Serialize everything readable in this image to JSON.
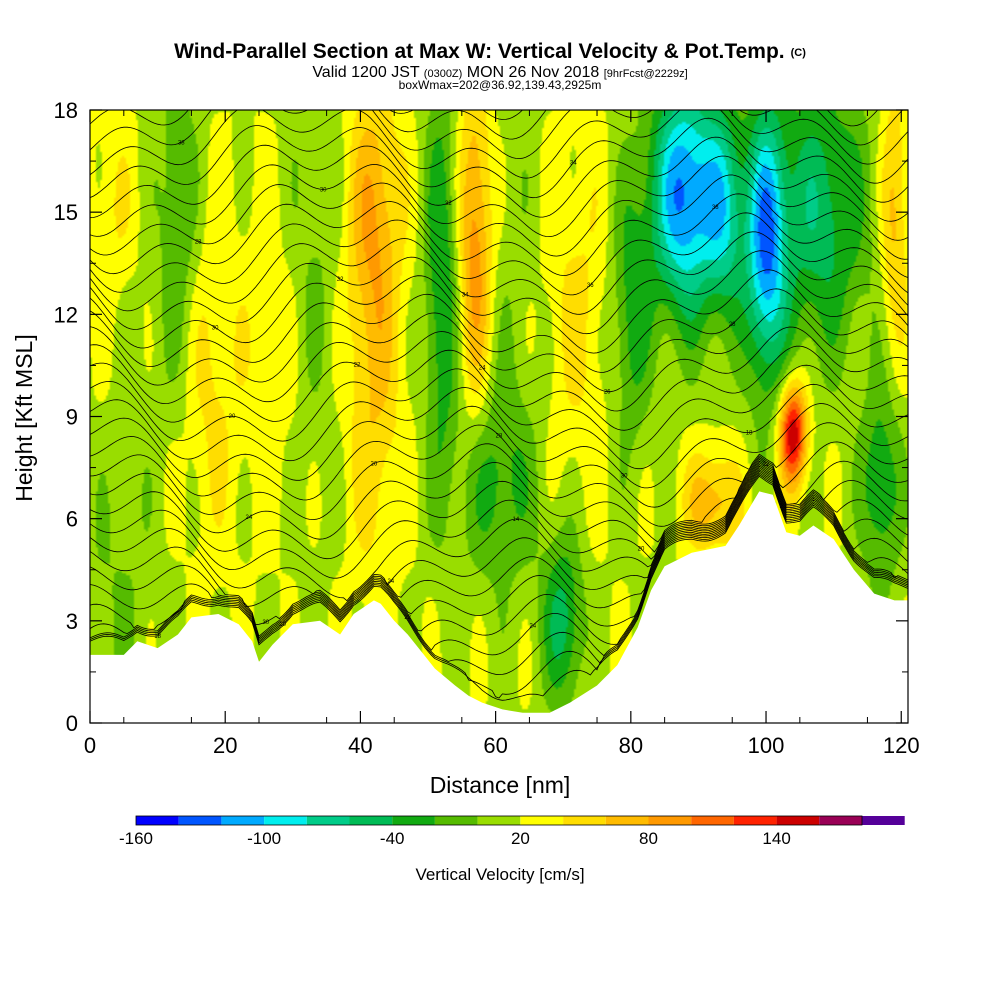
{
  "chart_data": {
    "type": "heatmap",
    "title": "Wind-Parallel Section at Max W: Vertical Velocity & Pot.Temp.",
    "title_mark": "(C)",
    "subtitle_parts": [
      "Valid 1200 JST ",
      "(0300Z)",
      " MON 26 Nov 2018 ",
      "[9hrFcst@2229z]"
    ],
    "subtitle2": "boxWmax=202@36.92,139.43,2925m",
    "xlabel": "Distance [nm]",
    "ylabel": "Height [Kft MSL]",
    "xlim": [
      0,
      121
    ],
    "ylim": [
      0,
      18
    ],
    "xticks": [
      "0",
      "20",
      "40",
      "60",
      "80",
      "100",
      "120"
    ],
    "xtick_values": [
      0,
      20,
      40,
      60,
      80,
      100,
      120
    ],
    "yticks": [
      "0",
      "3",
      "6",
      "9",
      "12",
      "15",
      "18"
    ],
    "ytick_values": [
      0,
      3,
      6,
      9,
      12,
      15,
      18
    ],
    "colorbar": {
      "label": "Vertical Velocity [cm/s]",
      "tick_labels": [
        "-160",
        "-100",
        "-40",
        "20",
        "80",
        "140"
      ],
      "tick_values": [
        -160,
        -100,
        -40,
        20,
        80,
        140
      ],
      "bins": [
        -160,
        -140,
        -120,
        -100,
        -80,
        -60,
        -40,
        -20,
        0,
        20,
        40,
        60,
        80,
        100,
        120,
        140,
        160,
        180
      ],
      "colors": [
        "#0000ff",
        "#0055ff",
        "#00aaff",
        "#00eeee",
        "#00cc88",
        "#00bb55",
        "#11aa11",
        "#55bb00",
        "#99dd00",
        "#ffff00",
        "#ffdd00",
        "#ffbb00",
        "#ff9900",
        "#ff6600",
        "#ff2200",
        "#cc0000",
        "#990055",
        "#550099"
      ]
    },
    "terrain": [
      [
        0,
        2.0
      ],
      [
        5,
        2.0
      ],
      [
        7,
        2.4
      ],
      [
        10,
        2.2
      ],
      [
        13,
        2.6
      ],
      [
        15,
        3.1
      ],
      [
        19,
        3.2
      ],
      [
        22,
        2.9
      ],
      [
        24,
        2.4
      ],
      [
        25,
        1.8
      ],
      [
        27,
        2.3
      ],
      [
        30,
        2.9
      ],
      [
        34,
        3.0
      ],
      [
        37,
        2.6
      ],
      [
        39,
        3.2
      ],
      [
        42,
        3.6
      ],
      [
        43,
        3.5
      ],
      [
        45,
        3.0
      ],
      [
        47,
        2.6
      ],
      [
        49,
        2.1
      ],
      [
        51,
        1.6
      ],
      [
        54,
        1.1
      ],
      [
        56,
        0.8
      ],
      [
        58,
        0.6
      ],
      [
        61,
        0.4
      ],
      [
        64,
        0.3
      ],
      [
        68,
        0.3
      ],
      [
        71,
        0.6
      ],
      [
        75,
        1.1
      ],
      [
        78,
        1.7
      ],
      [
        81,
        2.8
      ],
      [
        83,
        3.9
      ],
      [
        85,
        4.6
      ],
      [
        89,
        5.0
      ],
      [
        94,
        5.2
      ],
      [
        96,
        5.8
      ],
      [
        99,
        6.8
      ],
      [
        101,
        6.7
      ],
      [
        103,
        5.6
      ],
      [
        105,
        5.5
      ],
      [
        107,
        5.8
      ],
      [
        110,
        5.4
      ],
      [
        113,
        4.5
      ],
      [
        116,
        3.8
      ],
      [
        119,
        3.6
      ],
      [
        121,
        3.6
      ]
    ],
    "theta_labels": [
      "18",
      "20",
      "22",
      "24",
      "26",
      "28",
      "30",
      "24",
      "14",
      "20",
      "22",
      "24",
      "26",
      "28",
      "30",
      "18",
      "20",
      "22",
      "24",
      "26",
      "28",
      "30",
      "32",
      "34",
      "36",
      "38",
      "28",
      "30",
      "32",
      "34",
      "36",
      "38",
      "40",
      "42"
    ],
    "velocity_features": [
      {
        "x": 3,
        "z": 3.5,
        "w": 0,
        "xr": 6,
        "zr": 4
      },
      {
        "x": 7,
        "z": 11,
        "w": 10,
        "xr": 3,
        "zr": 7
      },
      {
        "x": 4,
        "z": 15,
        "w": 40,
        "xr": 4,
        "zr": 3
      },
      {
        "x": 13,
        "z": 15,
        "w": -20,
        "xr": 3,
        "zr": 5
      },
      {
        "x": 18,
        "z": 10,
        "w": 45,
        "xr": 4,
        "zr": 5
      },
      {
        "x": 27,
        "z": 11,
        "w": 35,
        "xr": 5,
        "zr": 5
      },
      {
        "x": 33,
        "z": 14,
        "w": -5,
        "xr": 4,
        "zr": 7
      },
      {
        "x": 42,
        "z": 15,
        "w": 75,
        "xr": 4,
        "zr": 4
      },
      {
        "x": 42,
        "z": 9,
        "w": 55,
        "xr": 4,
        "zr": 5
      },
      {
        "x": 52,
        "z": 13,
        "w": -40,
        "xr": 2.5,
        "zr": 6
      },
      {
        "x": 57,
        "z": 14,
        "w": 95,
        "xr": 2.5,
        "zr": 5
      },
      {
        "x": 60,
        "z": 7,
        "w": -25,
        "xr": 6,
        "zr": 3
      },
      {
        "x": 62,
        "z": 13,
        "w": 5,
        "xr": 5,
        "zr": 7
      },
      {
        "x": 72,
        "z": 12,
        "w": 45,
        "xr": 5,
        "zr": 5
      },
      {
        "x": 70,
        "z": 3,
        "w": -50,
        "xr": 3,
        "zr": 2.5
      },
      {
        "x": 80,
        "z": 12,
        "w": -30,
        "xr": 3,
        "zr": 4
      },
      {
        "x": 88,
        "z": 15.5,
        "w": -125,
        "xr": 5,
        "zr": 3.5
      },
      {
        "x": 94,
        "z": 15,
        "w": -60,
        "xr": 3,
        "zr": 3
      },
      {
        "x": 100,
        "z": 14,
        "w": -110,
        "xr": 3,
        "zr": 4
      },
      {
        "x": 108,
        "z": 15,
        "w": -55,
        "xr": 7,
        "zr": 4
      },
      {
        "x": 104,
        "z": 8.5,
        "w": 160,
        "xr": 2,
        "zr": 1.5
      },
      {
        "x": 92,
        "z": 6.5,
        "w": 75,
        "xr": 4,
        "zr": 1.5
      },
      {
        "x": 117,
        "z": 7,
        "w": -40,
        "xr": 3,
        "zr": 3
      },
      {
        "x": 119,
        "z": 15,
        "w": 70,
        "xr": 2,
        "zr": 4
      }
    ]
  }
}
